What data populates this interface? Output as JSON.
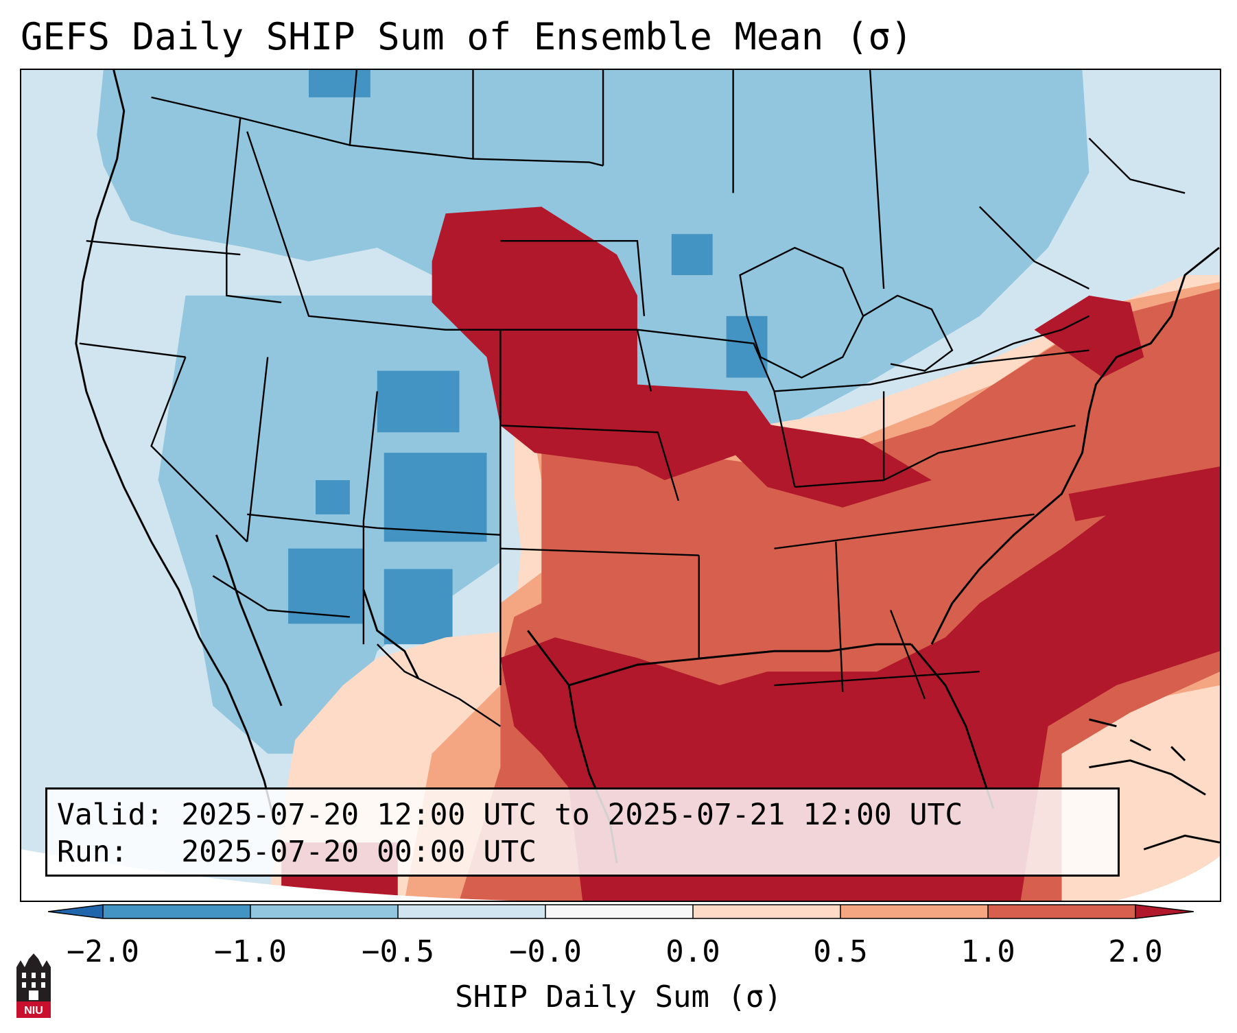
{
  "title": "GEFS Daily SHIP Sum of Ensemble Mean (σ)",
  "info": {
    "valid_line": "Valid: 2025-07-20 12:00 UTC to 2025-07-21 12:00 UTC",
    "run_line": "Run:   2025-07-20 00:00 UTC"
  },
  "colorbar": {
    "label": "SHIP Daily Sum (σ)",
    "ticks": [
      "−2.0",
      "−1.0",
      "−0.5",
      "−0.0",
      "0.0",
      "0.5",
      "1.0",
      "2.0"
    ],
    "colors": [
      "#3f8fc4",
      "#92c5de",
      "#d1e5f0",
      "#f7f7f7",
      "#fddbc7",
      "#f4a582",
      "#d6604d",
      "#b2182b"
    ]
  },
  "palette": {
    "strong_blue": "#4393c3",
    "blue": "#92c5de",
    "light_blue": "#d1e5f0",
    "light_red": "#fddbc7",
    "salmon": "#f4a582",
    "red": "#d6604d",
    "dark_red": "#b2182b"
  },
  "logo": {
    "text": "NIU",
    "icon": "niu-castle-logo-icon"
  }
}
